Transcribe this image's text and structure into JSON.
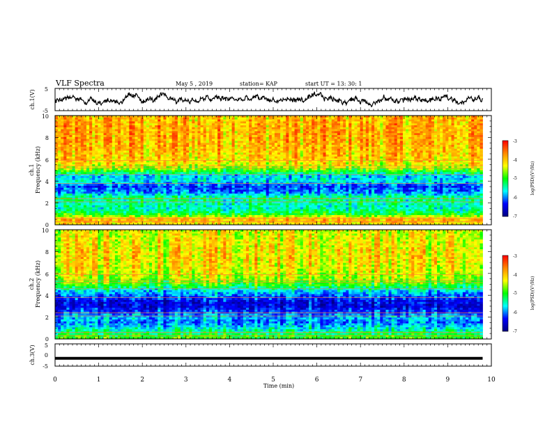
{
  "header": {
    "title": "VLF Spectra",
    "date": "May 5  , 2019",
    "station": "station= KAP",
    "start": "start  UT  =   13: 30: 1"
  },
  "colorbar": {
    "label": "log(PSD)(V²/Hz)",
    "ticks": [
      "-3",
      "-4",
      "-5",
      "-6",
      "-7"
    ],
    "colors": [
      "#ff0000",
      "#ff8800",
      "#ffff00",
      "#00ff00",
      "#00ffff",
      "#0000ff",
      "#00007f"
    ]
  },
  "chart_data": [
    {
      "type": "line",
      "panel": "ch1-waveform",
      "ylabel": "ch.1(V)",
      "ylim": [
        -5,
        5
      ],
      "yticks": [
        "5",
        "-5"
      ],
      "xlim": [
        0,
        10
      ],
      "x_extent": [
        0,
        9.8
      ],
      "description_values": {
        "mean": 0,
        "amplitude_approx": 2
      }
    },
    {
      "type": "heatmap",
      "panel": "ch1-spectrogram",
      "ylabel": "ch.1\nFrequency (kHz)",
      "ylim": [
        0,
        10
      ],
      "yticks": [
        "0",
        "2",
        "4",
        "6",
        "8",
        "10"
      ],
      "xlim": [
        0,
        10
      ],
      "x_extent": [
        0,
        9.8
      ],
      "zlim": [
        -7,
        -3
      ],
      "freq_profile_khz": [
        0,
        0.5,
        1,
        1.5,
        2,
        2.5,
        3,
        3.5,
        4,
        4.5,
        5,
        5.5,
        6,
        7,
        8,
        9,
        10
      ],
      "log_psd_profile": [
        -4.2,
        -3.9,
        -5.1,
        -5.5,
        -5.4,
        -5.3,
        -6.0,
        -6.2,
        -5.6,
        -5.8,
        -4.8,
        -4.3,
        -4.1,
        -4.0,
        -3.9,
        -3.9,
        -4.0
      ]
    },
    {
      "type": "heatmap",
      "panel": "ch2-spectrogram",
      "ylabel": "ch.2\nFrequency (kHz)",
      "ylim": [
        0,
        10
      ],
      "yticks": [
        "0",
        "2",
        "4",
        "6",
        "8",
        "10"
      ],
      "xlim": [
        0,
        10
      ],
      "x_extent": [
        0,
        9.8
      ],
      "zlim": [
        -7,
        -3
      ],
      "freq_profile_khz": [
        0,
        0.5,
        1,
        1.5,
        2,
        2.5,
        3,
        3.5,
        4,
        4.5,
        5,
        5.5,
        6,
        7,
        8,
        9,
        10
      ],
      "log_psd_profile": [
        -4.8,
        -5.2,
        -5.6,
        -6.0,
        -5.8,
        -6.2,
        -6.5,
        -6.4,
        -6.0,
        -5.6,
        -4.9,
        -4.6,
        -4.4,
        -4.2,
        -4.2,
        -4.3,
        -4.4
      ]
    },
    {
      "type": "line",
      "panel": "ch3-waveform",
      "ylabel": "ch.3(V)",
      "ylim": [
        -5,
        5
      ],
      "yticks": [
        "5",
        "0",
        "-5"
      ],
      "xlim": [
        0,
        10
      ],
      "x_extent": [
        0,
        9.8
      ],
      "values": [
        -1.5,
        -1.5
      ],
      "xlabel": "Time  (min)",
      "xticks": [
        "0",
        "1",
        "2",
        "3",
        "4",
        "5",
        "6",
        "7",
        "8",
        "9",
        "10"
      ]
    }
  ]
}
